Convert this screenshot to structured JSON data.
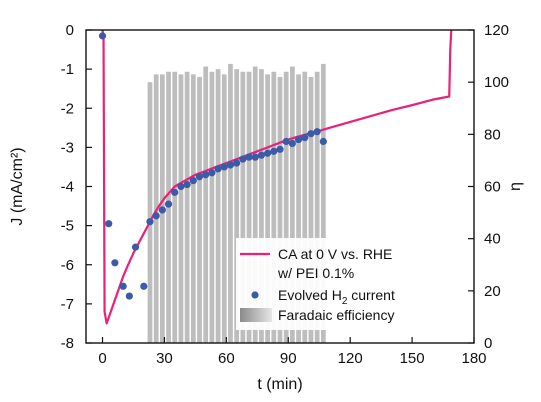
{
  "chart_data": {
    "type": "line",
    "xlabel": "t (min)",
    "ylabel_left": "J (mA/cm²)",
    "ylabel_right": "η",
    "xlim": [
      -8,
      180
    ],
    "ylim_left": [
      -8,
      0
    ],
    "ylim_right": [
      0,
      120
    ],
    "x_ticks": [
      0,
      30,
      60,
      90,
      120,
      150,
      180
    ],
    "y_ticks_left": [
      0,
      -1,
      -2,
      -3,
      -4,
      -5,
      -6,
      -7,
      -8
    ],
    "y_ticks_right": [
      0,
      20,
      40,
      60,
      80,
      100,
      120
    ],
    "legend": {
      "placement": "bottom-right",
      "entries": [
        {
          "label_line1": "CA at 0 V vs. RHE",
          "label_line2": "w/ PEI 0.1%",
          "marker": "line"
        },
        {
          "label_prefix": "Evolved H",
          "label_sub": "2",
          "label_suffix": " current",
          "marker": "circle"
        },
        {
          "label": "Faradaic efficiency",
          "marker": "bar"
        }
      ]
    },
    "colors": {
      "ca_line": "#e8227a",
      "h2_points": "#3b5aa8",
      "fe_bars": "#bdbdbd"
    },
    "series": [
      {
        "name": "CA at 0 V vs. RHE w/ PEI 0.1%",
        "axis": "left",
        "style": "line",
        "x": [
          0,
          0.5,
          1,
          2,
          4,
          6,
          8,
          10,
          12,
          15,
          18,
          20,
          22,
          25,
          28,
          30,
          35,
          40,
          45,
          50,
          55,
          60,
          65,
          70,
          75,
          80,
          85,
          90,
          95,
          100,
          105,
          110,
          120,
          130,
          140,
          150,
          160,
          168,
          168.5,
          169
        ],
        "y": [
          0,
          -0.2,
          -7.2,
          -7.5,
          -7.2,
          -6.9,
          -6.6,
          -6.3,
          -6.05,
          -5.7,
          -5.4,
          -5.2,
          -5.0,
          -4.7,
          -4.45,
          -4.3,
          -4.0,
          -3.85,
          -3.7,
          -3.6,
          -3.5,
          -3.4,
          -3.3,
          -3.2,
          -3.1,
          -3.0,
          -2.9,
          -2.8,
          -2.72,
          -2.65,
          -2.58,
          -2.5,
          -2.35,
          -2.2,
          -2.05,
          -1.92,
          -1.78,
          -1.7,
          -0.5,
          0
        ]
      },
      {
        "name": "Evolved H2 current",
        "axis": "left",
        "style": "scatter",
        "x": [
          0,
          3,
          6,
          10,
          13,
          16,
          20,
          23,
          26,
          29,
          32,
          35,
          38,
          41,
          44,
          47,
          50,
          53,
          56,
          59,
          62,
          65,
          68,
          71,
          74,
          77,
          80,
          83,
          86,
          89,
          92,
          95,
          98,
          101,
          104,
          107
        ],
        "y": [
          -0.15,
          -4.95,
          -5.95,
          -6.55,
          -6.8,
          -5.55,
          -6.55,
          -4.9,
          -4.75,
          -4.6,
          -4.45,
          -4.15,
          -4.0,
          -3.95,
          -3.85,
          -3.75,
          -3.7,
          -3.65,
          -3.55,
          -3.5,
          -3.45,
          -3.4,
          -3.3,
          -3.25,
          -3.25,
          -3.2,
          -3.15,
          -3.1,
          -3.05,
          -2.85,
          -2.9,
          -2.8,
          -2.75,
          -2.65,
          -2.6,
          -2.85
        ]
      },
      {
        "name": "Faradaic efficiency",
        "axis": "right",
        "style": "bar",
        "x": [
          23,
          26,
          29,
          32,
          35,
          38,
          41,
          44,
          47,
          50,
          53,
          56,
          59,
          62,
          65,
          68,
          71,
          74,
          77,
          80,
          83,
          86,
          89,
          92,
          95,
          98,
          101,
          104,
          107
        ],
        "values": [
          100,
          103,
          103,
          104,
          104,
          103,
          104,
          103,
          102,
          106,
          104,
          105,
          103,
          107,
          105,
          104,
          104,
          106,
          105,
          103,
          104,
          102,
          104,
          106,
          103,
          104,
          102,
          104,
          107
        ]
      }
    ]
  }
}
